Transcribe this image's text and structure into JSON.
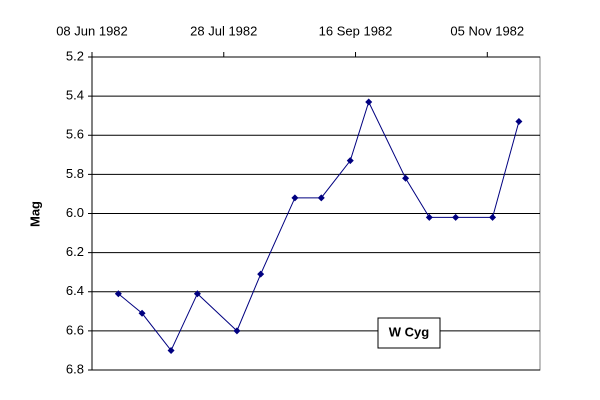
{
  "chart_data": {
    "type": "line",
    "ylabel": "Mag",
    "annotation": "W Cyg",
    "x": [
      "1982-06-18",
      "1982-06-27",
      "1982-07-08",
      "1982-07-18",
      "1982-08-02",
      "1982-08-11",
      "1982-08-24",
      "1982-09-03",
      "1982-09-14",
      "1982-09-21",
      "1982-10-05",
      "1982-10-14",
      "1982-10-24",
      "1982-11-07",
      "1982-11-17"
    ],
    "series": [
      {
        "name": "W Cyg",
        "color": "#000080",
        "values": [
          6.41,
          6.51,
          6.7,
          6.41,
          6.6,
          6.31,
          5.92,
          5.92,
          5.73,
          5.43,
          5.82,
          6.02,
          6.02,
          6.02,
          5.53
        ]
      }
    ],
    "xlim": [
      "1982-06-08",
      "1982-11-25"
    ],
    "xticks": [
      {
        "value": "1982-06-08",
        "label": "08 Jun 1982"
      },
      {
        "value": "1982-07-28",
        "label": "28 Jul 1982"
      },
      {
        "value": "1982-09-16",
        "label": "16 Sep 1982"
      },
      {
        "value": "1982-11-05",
        "label": "05 Nov 1982"
      }
    ],
    "x_axis_position": "top",
    "ylim": [
      6.8,
      5.2
    ],
    "yticks": [
      5.2,
      5.4,
      5.6,
      5.8,
      {
        "value": 6,
        "label": "6.0"
      },
      6.2,
      6.4,
      6.6,
      6.8
    ],
    "grid": true
  }
}
